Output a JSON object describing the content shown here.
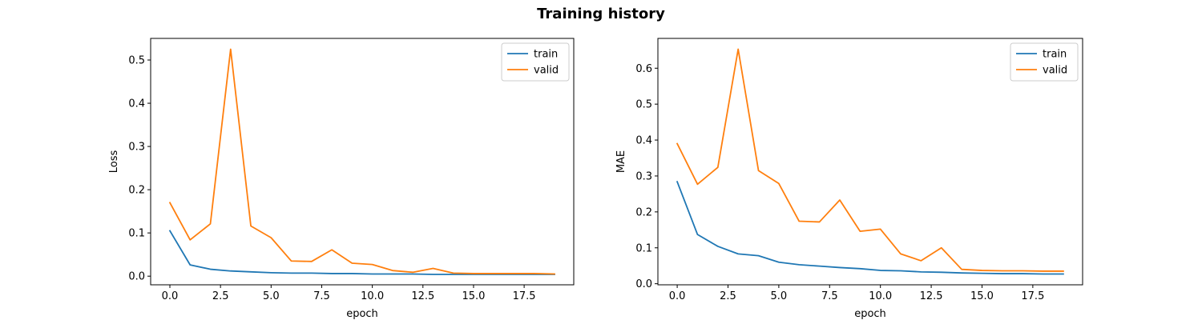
{
  "figure": {
    "title": "Training history"
  },
  "chart_data": [
    {
      "type": "line",
      "title": "",
      "xlabel": "epoch",
      "ylabel": "Loss",
      "xlim": [
        -0.95,
        19.95
      ],
      "ylim": [
        -0.02,
        0.55
      ],
      "xticks": [
        0.0,
        2.5,
        5.0,
        7.5,
        10.0,
        12.5,
        15.0,
        17.5
      ],
      "xtick_labels": [
        "0.0",
        "2.5",
        "5.0",
        "7.5",
        "10.0",
        "12.5",
        "15.0",
        "17.5"
      ],
      "yticks": [
        0.0,
        0.1,
        0.2,
        0.3,
        0.4,
        0.5
      ],
      "ytick_labels": [
        "0.0",
        "0.1",
        "0.2",
        "0.3",
        "0.4",
        "0.5"
      ],
      "grid": false,
      "legend": "upper right",
      "x": [
        0,
        1,
        2,
        3,
        4,
        5,
        6,
        7,
        8,
        9,
        10,
        11,
        12,
        13,
        14,
        15,
        16,
        17,
        18,
        19
      ],
      "series": [
        {
          "name": "train",
          "color": "#1f77b4",
          "values": [
            0.105,
            0.026,
            0.016,
            0.012,
            0.01,
            0.008,
            0.007,
            0.007,
            0.006,
            0.006,
            0.005,
            0.005,
            0.005,
            0.004,
            0.004,
            0.004,
            0.004,
            0.004,
            0.004,
            0.004
          ]
        },
        {
          "name": "valid",
          "color": "#ff7f0e",
          "values": [
            0.17,
            0.084,
            0.121,
            0.525,
            0.116,
            0.089,
            0.035,
            0.034,
            0.061,
            0.03,
            0.027,
            0.013,
            0.009,
            0.018,
            0.007,
            0.006,
            0.006,
            0.006,
            0.006,
            0.005
          ]
        }
      ]
    },
    {
      "type": "line",
      "title": "",
      "xlabel": "epoch",
      "ylabel": "MAE",
      "xlim": [
        -0.95,
        19.95
      ],
      "ylim": [
        -0.003,
        0.683
      ],
      "xticks": [
        0.0,
        2.5,
        5.0,
        7.5,
        10.0,
        12.5,
        15.0,
        17.5
      ],
      "xtick_labels": [
        "0.0",
        "2.5",
        "5.0",
        "7.5",
        "10.0",
        "12.5",
        "15.0",
        "17.5"
      ],
      "yticks": [
        0.0,
        0.1,
        0.2,
        0.3,
        0.4,
        0.5,
        0.6
      ],
      "ytick_labels": [
        "0.0",
        "0.1",
        "0.2",
        "0.3",
        "0.4",
        "0.5",
        "0.6"
      ],
      "grid": false,
      "legend": "upper right",
      "x": [
        0,
        1,
        2,
        3,
        4,
        5,
        6,
        7,
        8,
        9,
        10,
        11,
        12,
        13,
        14,
        15,
        16,
        17,
        18,
        19
      ],
      "series": [
        {
          "name": "train",
          "color": "#1f77b4",
          "values": [
            0.284,
            0.137,
            0.104,
            0.083,
            0.078,
            0.06,
            0.053,
            0.049,
            0.045,
            0.042,
            0.037,
            0.036,
            0.033,
            0.032,
            0.03,
            0.029,
            0.028,
            0.028,
            0.027,
            0.027
          ]
        },
        {
          "name": "valid",
          "color": "#ff7f0e",
          "values": [
            0.39,
            0.277,
            0.324,
            0.653,
            0.315,
            0.279,
            0.174,
            0.172,
            0.233,
            0.146,
            0.152,
            0.083,
            0.064,
            0.1,
            0.04,
            0.037,
            0.036,
            0.036,
            0.035,
            0.035
          ]
        }
      ]
    }
  ]
}
